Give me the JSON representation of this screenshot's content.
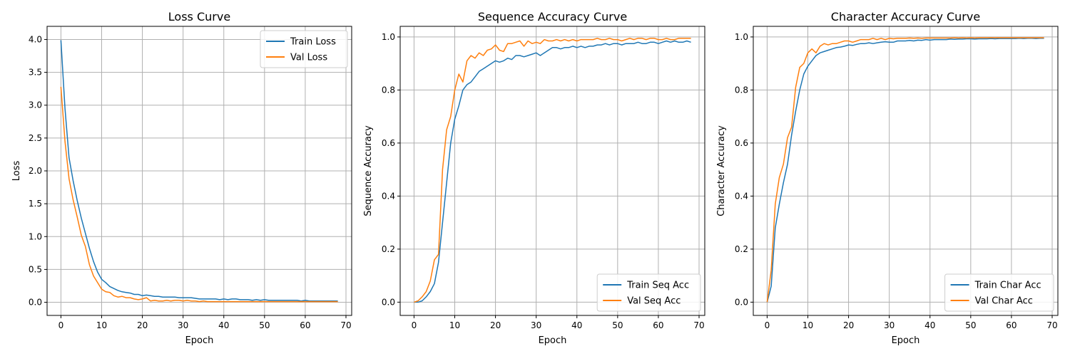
{
  "colors": {
    "train": "#1f77b4",
    "val": "#ff7f0e"
  },
  "chart_data": [
    {
      "type": "line",
      "title": "Loss Curve",
      "xlabel": "Epoch",
      "ylabel": "Loss",
      "xlim": [
        -3.4,
        71.4
      ],
      "ylim": [
        -0.2,
        4.2
      ],
      "xticks": [
        0,
        10,
        20,
        30,
        40,
        50,
        60,
        70
      ],
      "xtick_labels": [
        "0",
        "10",
        "20",
        "30",
        "40",
        "50",
        "60",
        "70"
      ],
      "yticks": [
        0,
        0.5,
        1,
        1.5,
        2,
        2.5,
        3,
        3.5,
        4
      ],
      "ytick_labels": [
        "0.0",
        "0.5",
        "1.0",
        "1.5",
        "2.0",
        "2.5",
        "3.0",
        "3.5",
        "4.0"
      ],
      "grid": true,
      "legend_loc": "upper right",
      "x": [
        0,
        1,
        2,
        3,
        4,
        5,
        6,
        7,
        8,
        9,
        10,
        11,
        12,
        13,
        14,
        15,
        16,
        17,
        18,
        19,
        20,
        21,
        22,
        23,
        24,
        25,
        26,
        27,
        28,
        29,
        30,
        31,
        32,
        33,
        34,
        35,
        36,
        37,
        38,
        39,
        40,
        41,
        42,
        43,
        44,
        45,
        46,
        47,
        48,
        49,
        50,
        51,
        52,
        53,
        54,
        55,
        56,
        57,
        58,
        59,
        60,
        61,
        62,
        63,
        64,
        65,
        66,
        67,
        68
      ],
      "series": [
        {
          "name": "Train Loss",
          "color_key": "train",
          "values": [
            3.99,
            2.95,
            2.2,
            1.85,
            1.55,
            1.28,
            1.05,
            0.82,
            0.62,
            0.46,
            0.35,
            0.3,
            0.24,
            0.21,
            0.18,
            0.16,
            0.15,
            0.14,
            0.12,
            0.12,
            0.1,
            0.11,
            0.1,
            0.09,
            0.09,
            0.08,
            0.08,
            0.08,
            0.08,
            0.07,
            0.07,
            0.07,
            0.07,
            0.06,
            0.05,
            0.05,
            0.05,
            0.05,
            0.05,
            0.04,
            0.05,
            0.04,
            0.05,
            0.05,
            0.04,
            0.04,
            0.04,
            0.03,
            0.04,
            0.03,
            0.04,
            0.03,
            0.03,
            0.03,
            0.03,
            0.03,
            0.03,
            0.03,
            0.03,
            0.02,
            0.03,
            0.02,
            0.02,
            0.02,
            0.02,
            0.02,
            0.02,
            0.02,
            0.02
          ]
        },
        {
          "name": "Val Loss",
          "color_key": "val",
          "values": [
            3.28,
            2.45,
            1.88,
            1.56,
            1.3,
            1.02,
            0.85,
            0.57,
            0.4,
            0.3,
            0.2,
            0.16,
            0.15,
            0.1,
            0.08,
            0.09,
            0.07,
            0.07,
            0.05,
            0.04,
            0.05,
            0.07,
            0.02,
            0.03,
            0.02,
            0.02,
            0.03,
            0.02,
            0.03,
            0.03,
            0.02,
            0.03,
            0.02,
            0.02,
            0.01,
            0.02,
            0.01,
            0.01,
            0.01,
            0.01,
            0.01,
            0.01,
            0.01,
            0.01,
            0.01,
            0.01,
            0.01,
            0.01,
            0.01,
            0.01,
            0.01,
            0.01,
            0.01,
            0.01,
            0.01,
            0.01,
            0.01,
            0.01,
            0.01,
            0.01,
            0.01,
            0.01,
            0.01,
            0.01,
            0.01,
            0.01,
            0.01,
            0.01,
            0.01
          ]
        }
      ]
    },
    {
      "type": "line",
      "title": "Sequence Accuracy Curve",
      "xlabel": "Epoch",
      "ylabel": "Sequence Accuracy",
      "xlim": [
        -3.4,
        71.4
      ],
      "ylim": [
        -0.05,
        1.04
      ],
      "xticks": [
        0,
        10,
        20,
        30,
        40,
        50,
        60,
        70
      ],
      "xtick_labels": [
        "0",
        "10",
        "20",
        "30",
        "40",
        "50",
        "60",
        "70"
      ],
      "yticks": [
        0,
        0.2,
        0.4,
        0.6,
        0.8,
        1
      ],
      "ytick_labels": [
        "0.0",
        "0.2",
        "0.4",
        "0.6",
        "0.8",
        "1.0"
      ],
      "grid": true,
      "legend_loc": "lower right",
      "x": [
        0,
        1,
        2,
        3,
        4,
        5,
        6,
        7,
        8,
        9,
        10,
        11,
        12,
        13,
        14,
        15,
        16,
        17,
        18,
        19,
        20,
        21,
        22,
        23,
        24,
        25,
        26,
        27,
        28,
        29,
        30,
        31,
        32,
        33,
        34,
        35,
        36,
        37,
        38,
        39,
        40,
        41,
        42,
        43,
        44,
        45,
        46,
        47,
        48,
        49,
        50,
        51,
        52,
        53,
        54,
        55,
        56,
        57,
        58,
        59,
        60,
        61,
        62,
        63,
        64,
        65,
        66,
        67,
        68
      ],
      "series": [
        {
          "name": "Train Seq Acc",
          "color_key": "train",
          "values": [
            0,
            0,
            0.005,
            0.02,
            0.04,
            0.07,
            0.15,
            0.3,
            0.45,
            0.6,
            0.69,
            0.74,
            0.8,
            0.82,
            0.83,
            0.85,
            0.87,
            0.88,
            0.89,
            0.9,
            0.91,
            0.905,
            0.91,
            0.92,
            0.915,
            0.93,
            0.93,
            0.925,
            0.93,
            0.935,
            0.94,
            0.93,
            0.94,
            0.95,
            0.96,
            0.96,
            0.955,
            0.96,
            0.96,
            0.965,
            0.96,
            0.965,
            0.96,
            0.965,
            0.965,
            0.97,
            0.97,
            0.975,
            0.97,
            0.975,
            0.975,
            0.97,
            0.975,
            0.975,
            0.975,
            0.98,
            0.975,
            0.975,
            0.98,
            0.98,
            0.975,
            0.98,
            0.985,
            0.98,
            0.985,
            0.98,
            0.98,
            0.985,
            0.98
          ]
        },
        {
          "name": "Val Seq Acc",
          "color_key": "val",
          "values": [
            0,
            0.005,
            0.02,
            0.04,
            0.08,
            0.16,
            0.18,
            0.5,
            0.65,
            0.7,
            0.8,
            0.86,
            0.83,
            0.91,
            0.93,
            0.92,
            0.94,
            0.93,
            0.95,
            0.955,
            0.97,
            0.95,
            0.945,
            0.975,
            0.975,
            0.98,
            0.985,
            0.965,
            0.985,
            0.975,
            0.98,
            0.975,
            0.99,
            0.985,
            0.985,
            0.99,
            0.985,
            0.99,
            0.985,
            0.99,
            0.985,
            0.99,
            0.99,
            0.99,
            0.99,
            0.995,
            0.99,
            0.99,
            0.995,
            0.99,
            0.99,
            0.985,
            0.99,
            0.995,
            0.99,
            0.995,
            0.995,
            0.99,
            0.995,
            0.995,
            0.99,
            0.99,
            0.995,
            0.99,
            0.99,
            0.995,
            0.995,
            0.995,
            0.995
          ]
        }
      ]
    },
    {
      "type": "line",
      "title": "Character Accuracy Curve",
      "xlabel": "Epoch",
      "ylabel": "Character Accuracy",
      "xlim": [
        -3.4,
        71.4
      ],
      "ylim": [
        -0.05,
        1.04
      ],
      "xticks": [
        0,
        10,
        20,
        30,
        40,
        50,
        60,
        70
      ],
      "xtick_labels": [
        "0",
        "10",
        "20",
        "30",
        "40",
        "50",
        "60",
        "70"
      ],
      "yticks": [
        0,
        0.2,
        0.4,
        0.6,
        0.8,
        1
      ],
      "ytick_labels": [
        "0.0",
        "0.2",
        "0.4",
        "0.6",
        "0.8",
        "1.0"
      ],
      "grid": true,
      "legend_loc": "lower right",
      "x": [
        0,
        1,
        2,
        3,
        4,
        5,
        6,
        7,
        8,
        9,
        10,
        11,
        12,
        13,
        14,
        15,
        16,
        17,
        18,
        19,
        20,
        21,
        22,
        23,
        24,
        25,
        26,
        27,
        28,
        29,
        30,
        31,
        32,
        33,
        34,
        35,
        36,
        37,
        38,
        39,
        40,
        41,
        42,
        43,
        44,
        45,
        46,
        47,
        48,
        49,
        50,
        51,
        52,
        53,
        54,
        55,
        56,
        57,
        58,
        59,
        60,
        61,
        62,
        63,
        64,
        65,
        66,
        67,
        68
      ],
      "series": [
        {
          "name": "Train Char Acc",
          "color_key": "train",
          "values": [
            0,
            0.06,
            0.28,
            0.37,
            0.45,
            0.52,
            0.63,
            0.72,
            0.8,
            0.86,
            0.89,
            0.91,
            0.93,
            0.94,
            0.945,
            0.95,
            0.955,
            0.96,
            0.962,
            0.965,
            0.97,
            0.968,
            0.972,
            0.975,
            0.975,
            0.978,
            0.975,
            0.978,
            0.98,
            0.982,
            0.98,
            0.98,
            0.985,
            0.985,
            0.985,
            0.987,
            0.985,
            0.988,
            0.987,
            0.99,
            0.988,
            0.99,
            0.99,
            0.99,
            0.99,
            0.992,
            0.991,
            0.992,
            0.992,
            0.993,
            0.993,
            0.992,
            0.993,
            0.993,
            0.993,
            0.994,
            0.993,
            0.994,
            0.994,
            0.994,
            0.994,
            0.994,
            0.995,
            0.994,
            0.995,
            0.995,
            0.994,
            0.995,
            0.995
          ]
        },
        {
          "name": "Val Char Acc",
          "color_key": "val",
          "values": [
            0,
            0.12,
            0.37,
            0.47,
            0.52,
            0.62,
            0.66,
            0.81,
            0.885,
            0.9,
            0.94,
            0.955,
            0.94,
            0.965,
            0.975,
            0.97,
            0.975,
            0.975,
            0.98,
            0.985,
            0.985,
            0.98,
            0.985,
            0.99,
            0.99,
            0.99,
            0.995,
            0.99,
            0.995,
            0.99,
            0.995,
            0.993,
            0.995,
            0.995,
            0.995,
            0.996,
            0.995,
            0.996,
            0.995,
            0.996,
            0.996,
            0.996,
            0.996,
            0.996,
            0.996,
            0.996,
            0.997,
            0.996,
            0.997,
            0.996,
            0.997,
            0.996,
            0.997,
            0.997,
            0.997,
            0.997,
            0.997,
            0.997,
            0.997,
            0.997,
            0.997,
            0.997,
            0.997,
            0.997,
            0.997,
            0.997,
            0.997,
            0.997,
            0.997
          ]
        }
      ]
    }
  ]
}
